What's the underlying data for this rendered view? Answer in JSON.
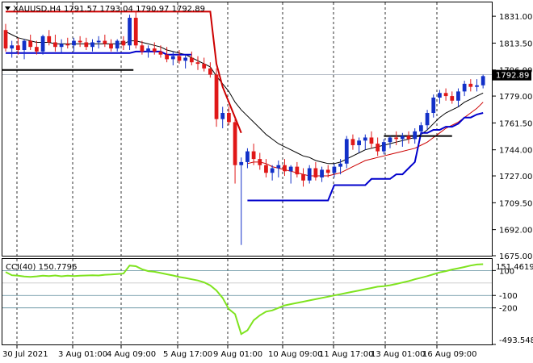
{
  "chart_data": [
    {
      "type": "candlestick",
      "symbol": "XAUUSD,H4",
      "ohlc_label": "1791.57 1793.04 1790.97 1792.89",
      "current_price": "1792.89",
      "ylim": [
        1675.0,
        1840.0
      ],
      "y_ticks": [
        "1831.00",
        "1813.50",
        "1796.00",
        "1779.00",
        "1761.50",
        "1744.00",
        "1727.00",
        "1709.50",
        "1692.00",
        "1675.00"
      ],
      "x_ticks": [
        "30 Jul 2021",
        "3 Aug 01:00",
        "4 Aug 09:00",
        "5 Aug 17:00",
        "9 Aug 01:00",
        "10 Aug 09:00",
        "11 Aug 17:00",
        "13 Aug 01:00",
        "16 Aug 09:00"
      ],
      "candles": [
        [
          1822,
          1826,
          1808,
          1810
        ],
        [
          1810,
          1815,
          1804,
          1812
        ],
        [
          1812,
          1817,
          1806,
          1809
        ],
        [
          1809,
          1816,
          1803,
          1815
        ],
        [
          1815,
          1819,
          1809,
          1811
        ],
        [
          1811,
          1815,
          1806,
          1808
        ],
        [
          1808,
          1819,
          1806,
          1818
        ],
        [
          1818,
          1822,
          1812,
          1814
        ],
        [
          1814,
          1819,
          1808,
          1811
        ],
        [
          1811,
          1816,
          1807,
          1813
        ],
        [
          1813,
          1817,
          1810,
          1812
        ],
        [
          1812,
          1817,
          1808,
          1815
        ],
        [
          1815,
          1818,
          1811,
          1814
        ],
        [
          1814,
          1817,
          1809,
          1811
        ],
        [
          1811,
          1816,
          1808,
          1814
        ],
        [
          1814,
          1818,
          1810,
          1815
        ],
        [
          1815,
          1819,
          1811,
          1813
        ],
        [
          1813,
          1816,
          1808,
          1810
        ],
        [
          1810,
          1816,
          1808,
          1815
        ],
        [
          1815,
          1818,
          1809,
          1812
        ],
        [
          1812,
          1832,
          1809,
          1830
        ],
        [
          1830,
          1834,
          1810,
          1812
        ],
        [
          1812,
          1815,
          1806,
          1808
        ],
        [
          1808,
          1812,
          1804,
          1810
        ],
        [
          1810,
          1814,
          1806,
          1808
        ],
        [
          1808,
          1812,
          1804,
          1806
        ],
        [
          1806,
          1811,
          1801,
          1803
        ],
        [
          1803,
          1808,
          1799,
          1805
        ],
        [
          1805,
          1809,
          1800,
          1802
        ],
        [
          1802,
          1806,
          1797,
          1804
        ],
        [
          1804,
          1808,
          1799,
          1801
        ],
        [
          1801,
          1805,
          1796,
          1800
        ],
        [
          1800,
          1804,
          1795,
          1797
        ],
        [
          1797,
          1801,
          1791,
          1793
        ],
        [
          1793,
          1797,
          1759,
          1764
        ],
        [
          1764,
          1772,
          1758,
          1768
        ],
        [
          1768,
          1772,
          1760,
          1762
        ],
        [
          1762,
          1765,
          1722,
          1734
        ],
        [
          1734,
          1739,
          1682,
          1736
        ],
        [
          1736,
          1745,
          1732,
          1743
        ],
        [
          1743,
          1748,
          1734,
          1738
        ],
        [
          1738,
          1742,
          1731,
          1734
        ],
        [
          1734,
          1738,
          1726,
          1729
        ],
        [
          1729,
          1734,
          1724,
          1732
        ],
        [
          1732,
          1737,
          1726,
          1734
        ],
        [
          1734,
          1738,
          1727,
          1730
        ],
        [
          1730,
          1734,
          1722,
          1733
        ],
        [
          1733,
          1736,
          1726,
          1728
        ],
        [
          1728,
          1732,
          1720,
          1724
        ],
        [
          1724,
          1734,
          1722,
          1732
        ],
        [
          1732,
          1736,
          1724,
          1726
        ],
        [
          1726,
          1733,
          1723,
          1731
        ],
        [
          1731,
          1734,
          1726,
          1729
        ],
        [
          1729,
          1735,
          1726,
          1733
        ],
        [
          1733,
          1738,
          1728,
          1735
        ],
        [
          1735,
          1753,
          1732,
          1751
        ],
        [
          1751,
          1754,
          1744,
          1747
        ],
        [
          1747,
          1752,
          1742,
          1750
        ],
        [
          1750,
          1754,
          1744,
          1752
        ],
        [
          1752,
          1756,
          1745,
          1748
        ],
        [
          1748,
          1752,
          1740,
          1743
        ],
        [
          1743,
          1751,
          1741,
          1749
        ],
        [
          1749,
          1753,
          1745,
          1752
        ],
        [
          1752,
          1756,
          1747,
          1751
        ],
        [
          1751,
          1755,
          1746,
          1753
        ],
        [
          1753,
          1756,
          1748,
          1751
        ],
        [
          1751,
          1758,
          1748,
          1756
        ],
        [
          1756,
          1762,
          1753,
          1760
        ],
        [
          1760,
          1770,
          1757,
          1768
        ],
        [
          1768,
          1780,
          1765,
          1778
        ],
        [
          1778,
          1783,
          1774,
          1781
        ],
        [
          1781,
          1784,
          1776,
          1779
        ],
        [
          1779,
          1782,
          1774,
          1776
        ],
        [
          1776,
          1784,
          1772,
          1782
        ],
        [
          1782,
          1789,
          1779,
          1787
        ],
        [
          1787,
          1790,
          1782,
          1785
        ],
        [
          1785,
          1790,
          1782,
          1786
        ],
        [
          1786,
          1793,
          1784,
          1792
        ]
      ],
      "overlays": [
        {
          "color": "#000000",
          "values": [
            1821,
            1819,
            1817,
            1816,
            1815,
            1814,
            1814,
            1814,
            1813,
            1813,
            1813,
            1813,
            1813,
            1813,
            1813,
            1813,
            1813,
            1813,
            1813,
            1813,
            1815,
            1815,
            1814,
            1813,
            1812,
            1811,
            1809,
            1808,
            1807,
            1806,
            1804,
            1802,
            1800,
            1798,
            1792,
            1787,
            1782,
            1775,
            1770,
            1766,
            1762,
            1758,
            1754,
            1751,
            1748,
            1746,
            1744,
            1742,
            1740,
            1739,
            1737,
            1736,
            1735,
            1735,
            1736,
            1738,
            1740,
            1742,
            1744,
            1745,
            1746,
            1747,
            1748,
            1749,
            1750,
            1751,
            1752,
            1754,
            1757,
            1761,
            1765,
            1768,
            1770,
            1772,
            1775,
            1777,
            1779,
            1781
          ]
        },
        {
          "color": "#cc0000",
          "values": [
            null,
            null,
            null,
            null,
            null,
            null,
            null,
            null,
            null,
            null,
            null,
            null,
            null,
            null,
            null,
            null,
            null,
            null,
            null,
            null,
            null,
            null,
            null,
            null,
            null,
            null,
            null,
            null,
            null,
            null,
            null,
            null,
            null,
            null,
            null,
            null,
            null,
            null,
            null,
            1735,
            1736,
            1736,
            1735,
            1733,
            1732,
            1731,
            1730,
            1729,
            1728,
            1727,
            1727,
            1727,
            1727,
            1728,
            1729,
            1731,
            1733,
            1735,
            1737,
            1738,
            1739,
            1740,
            1741,
            1742,
            1743,
            1744,
            1745,
            1747,
            1749,
            1752,
            1755,
            1758,
            1760,
            1762,
            1765,
            1768,
            1771,
            1775
          ]
        },
        {
          "color": "#cc0000",
          "values": [
            1834,
            1834,
            1834,
            1834,
            1834,
            1834,
            1834,
            1834,
            1834,
            1834,
            1834,
            1834,
            1834,
            1834,
            1834,
            1834,
            1834,
            1834,
            1834,
            1834,
            1834,
            1834,
            1834,
            1834,
            1834,
            1834,
            1834,
            1834,
            1834,
            1834,
            1834,
            1834,
            1834,
            1834,
            1800,
            1785,
            1775,
            1765,
            1755,
            null,
            null,
            null,
            null,
            null,
            null,
            null,
            null,
            null,
            null,
            null,
            null,
            null,
            null,
            null,
            null,
            null,
            null,
            null,
            null,
            null,
            null,
            null,
            null,
            null,
            null,
            null,
            null,
            null,
            null,
            null,
            null,
            null,
            null,
            null,
            null,
            null,
            null,
            null
          ]
        },
        {
          "color": "#0000cc",
          "values": [
            1807,
            1807,
            1807,
            1807,
            1807,
            1807,
            1807,
            1807,
            1807,
            1807,
            1807,
            1807,
            1807,
            1807,
            1807,
            1807,
            1807,
            1807,
            1807,
            1807,
            1807,
            1808,
            1808,
            1808,
            1808,
            1808,
            1806,
            1806,
            1806,
            1806,
            1806,
            null,
            null,
            null,
            null,
            null,
            null,
            null,
            null,
            1711,
            1711,
            1711,
            1711,
            1711,
            1711,
            1711,
            1711,
            1711,
            1711,
            1711,
            1711,
            1711,
            1711,
            1721,
            1721,
            1721,
            1721,
            1721,
            1721,
            1725,
            1725,
            1725,
            1725,
            1728,
            1728,
            1732,
            1736,
            1755,
            1755,
            1757,
            1757,
            1759,
            1759,
            1761,
            1765,
            1765,
            1767,
            1768
          ]
        }
      ],
      "level_lines": [
        {
          "y": 1796.0,
          "x_start": 0,
          "x_end": 21
        }
      ],
      "flat_segments": [
        {
          "y": 1753.0,
          "x_start": 61,
          "x_end": 72,
          "color": "#000000"
        }
      ]
    },
    {
      "type": "line",
      "indicator": "CCI(40) 150.7796",
      "current_value": "151.4619",
      "ylim": [
        -493.5482,
        193.0
      ],
      "y_ticks": [
        "100",
        "-100",
        "-200",
        "-493.5482"
      ],
      "levels": [
        100,
        0,
        -100,
        -200
      ],
      "series": [
        {
          "color": "#7fe31f",
          "values": [
            88,
            62,
            58,
            52,
            49,
            53,
            58,
            55,
            60,
            54,
            59,
            56,
            58,
            60,
            62,
            60,
            66,
            68,
            72,
            76,
            140,
            135,
            110,
            95,
            90,
            80,
            70,
            60,
            48,
            40,
            30,
            20,
            5,
            -20,
            -60,
            -120,
            -210,
            -250,
            -410,
            -380,
            -300,
            -260,
            -230,
            -220,
            -200,
            -180,
            -170,
            -160,
            -150,
            -140,
            -130,
            -120,
            -110,
            -100,
            -90,
            -80,
            -70,
            -60,
            -50,
            -40,
            -30,
            -25,
            -18,
            -8,
            4,
            15,
            30,
            42,
            55,
            70,
            85,
            95,
            108,
            118,
            128,
            140,
            148,
            151
          ]
        }
      ]
    }
  ]
}
